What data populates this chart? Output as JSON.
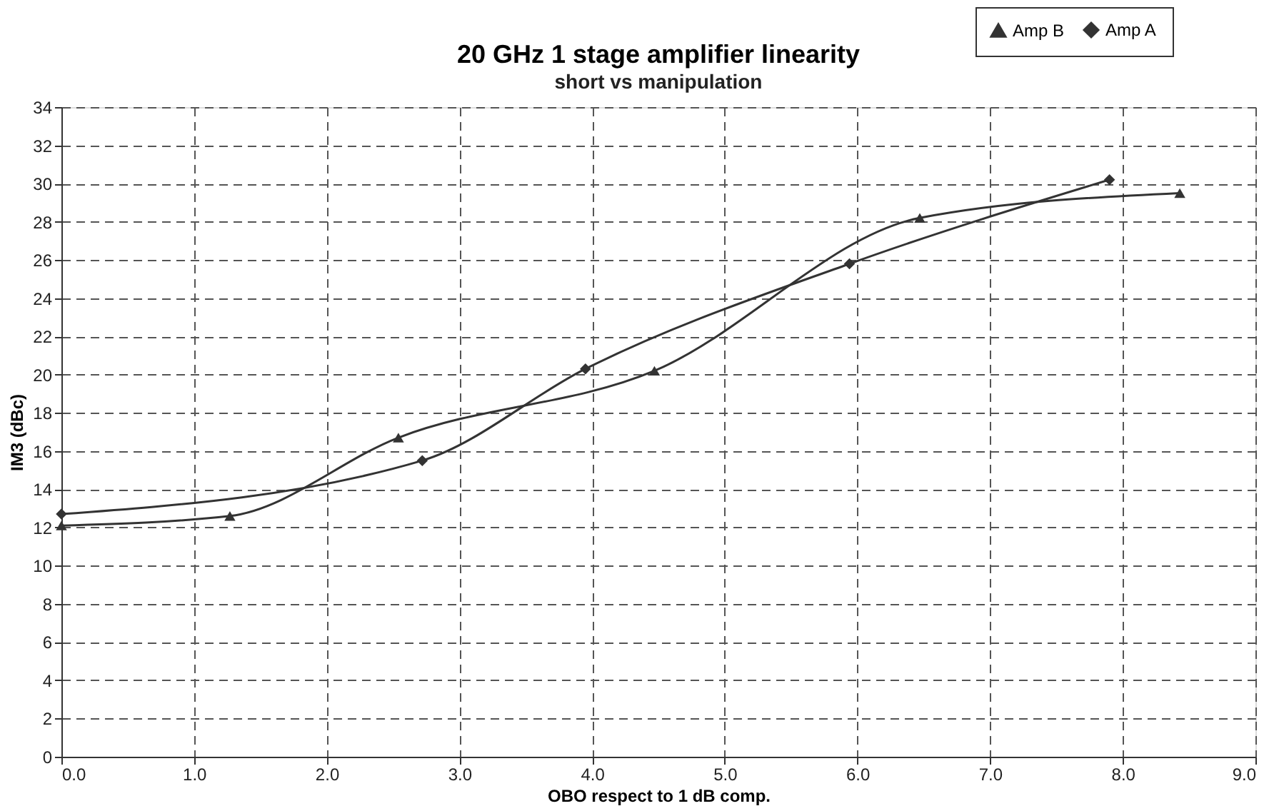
{
  "chart_data": {
    "type": "line",
    "title": "20 GHz 1 stage amplifier linearity",
    "subtitle": "short vs manipulation",
    "xlabel": "OBO respect to 1 dB comp.",
    "ylabel": "IM3 (dBc)",
    "xlim": [
      0,
      9
    ],
    "ylim": [
      0,
      34
    ],
    "xticks": [
      {
        "value": 0,
        "label": "0.0"
      },
      {
        "value": 1,
        "label": "1.0"
      },
      {
        "value": 2,
        "label": "2.0"
      },
      {
        "value": 3,
        "label": "3.0"
      },
      {
        "value": 4,
        "label": "4.0"
      },
      {
        "value": 5,
        "label": "5.0"
      },
      {
        "value": 6,
        "label": "6.0"
      },
      {
        "value": 7,
        "label": "7.0"
      },
      {
        "value": 8,
        "label": "8.0"
      },
      {
        "value": 9,
        "label": "9.0"
      }
    ],
    "yticks": [
      0,
      2,
      4,
      6,
      8,
      10,
      12,
      14,
      16,
      18,
      20,
      22,
      24,
      26,
      28,
      30,
      32,
      34
    ],
    "grid": true,
    "legend": "top right",
    "line_style": "solid",
    "series": [
      {
        "name": "Amp B",
        "color": "#333333",
        "marker": "triangle",
        "x": [
          0,
          1.27,
          2.54,
          4.47,
          6.47,
          8.43
        ],
        "values": [
          12.1,
          12.6,
          16.7,
          20.2,
          28.2,
          29.5
        ]
      },
      {
        "name": "Amp A",
        "color": "#333333",
        "marker": "diamond",
        "x": [
          0,
          2.72,
          3.95,
          5.94,
          7.9
        ],
        "values": [
          12.7,
          15.5,
          20.3,
          25.8,
          30.2
        ]
      }
    ]
  }
}
